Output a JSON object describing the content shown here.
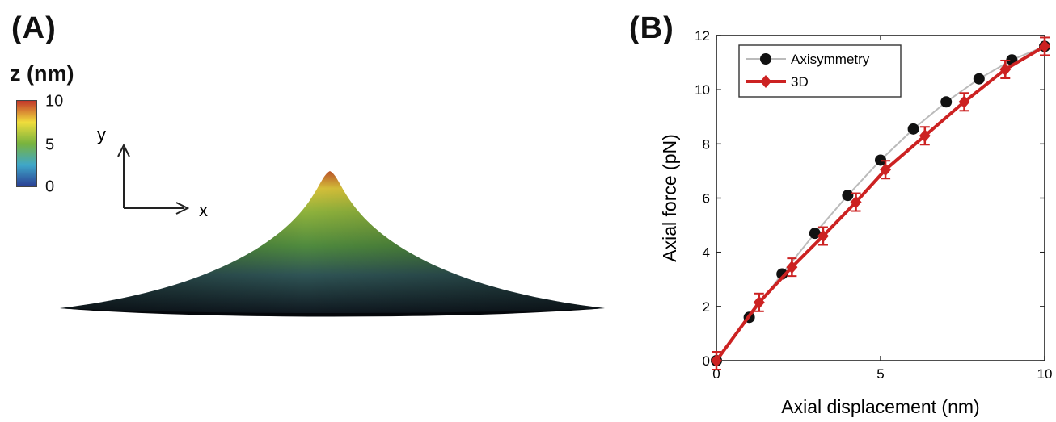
{
  "panel_a": {
    "label": "(A)",
    "colorbar": {
      "title": "z (nm)",
      "ticks": [
        "10",
        "5",
        "0"
      ],
      "colors": [
        "#c2362a",
        "#f0dd3c",
        "#78b33e",
        "#3fa7c9",
        "#2a3f94"
      ]
    },
    "axes": {
      "x_label": "x",
      "y_label": "y"
    }
  },
  "panel_b": {
    "label": "(B)"
  },
  "chart_data": {
    "type": "line",
    "title": "",
    "xlabel": "Axial displacement (nm)",
    "ylabel": "Axial force (pN)",
    "xlim": [
      0,
      10
    ],
    "ylim": [
      0,
      12
    ],
    "xticks": [
      0,
      5,
      10
    ],
    "yticks": [
      0,
      2,
      4,
      6,
      8,
      10,
      12
    ],
    "grid": false,
    "legend_position": "top-left",
    "series": [
      {
        "name": "Axisymmetry",
        "color": "#111111",
        "line_color": "#bbbbbb",
        "marker": "circle",
        "x": [
          0,
          1,
          2,
          3,
          4,
          5,
          6,
          7,
          8,
          9,
          10
        ],
        "y": [
          0,
          1.6,
          3.2,
          4.7,
          6.1,
          7.4,
          8.55,
          9.55,
          10.4,
          11.1,
          11.6
        ]
      },
      {
        "name": "3D",
        "color": "#cc2222",
        "line_color": "#cc2222",
        "marker": "diamond-errorbar",
        "x": [
          0,
          1.3,
          2.3,
          3.25,
          4.25,
          5.15,
          6.35,
          7.55,
          8.8,
          10
        ],
        "y": [
          0,
          2.15,
          3.45,
          4.6,
          5.85,
          7.05,
          8.3,
          9.55,
          10.75,
          11.6
        ]
      }
    ]
  }
}
